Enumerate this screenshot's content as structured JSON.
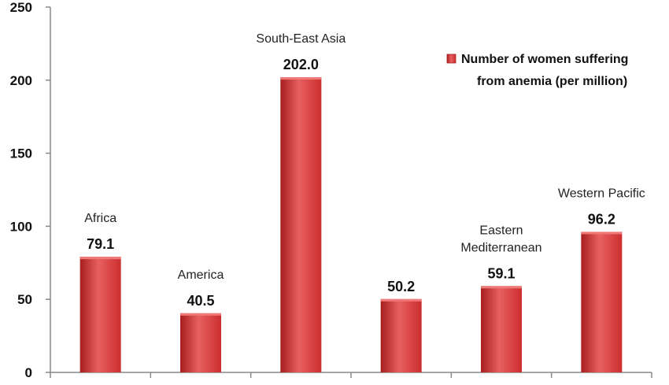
{
  "chart_data": {
    "type": "bar",
    "categories": [
      "Africa",
      "America",
      "South-East Asia",
      "",
      "Eastern Mediterranean",
      "Western Pacific"
    ],
    "category_lines": [
      [
        "Africa"
      ],
      [
        "America"
      ],
      [
        "South-East Asia"
      ],
      [],
      [
        "Eastern",
        "Mediterranean"
      ],
      [
        "Western Pacific"
      ]
    ],
    "series": [
      {
        "name": "Number of women suffering from anemia (per million)",
        "name_lines": [
          "Number of women suffering",
          "from anemia (per million)"
        ],
        "values": [
          79.1,
          40.5,
          202.0,
          50.2,
          59.1,
          96.2
        ],
        "labels": [
          "79.1",
          "40.5",
          "202.0",
          "50.2",
          "59.1",
          "96.2"
        ]
      }
    ],
    "ylim": [
      0,
      250
    ],
    "yticks": [
      "0",
      "50",
      "100",
      "150",
      "200",
      "250"
    ],
    "grid": false,
    "legend": "top-right",
    "colors": {
      "bar": "#cc2e2e",
      "bar_light": "#e86060",
      "bar_dark": "#a81e1e",
      "axis": "#888888"
    }
  }
}
